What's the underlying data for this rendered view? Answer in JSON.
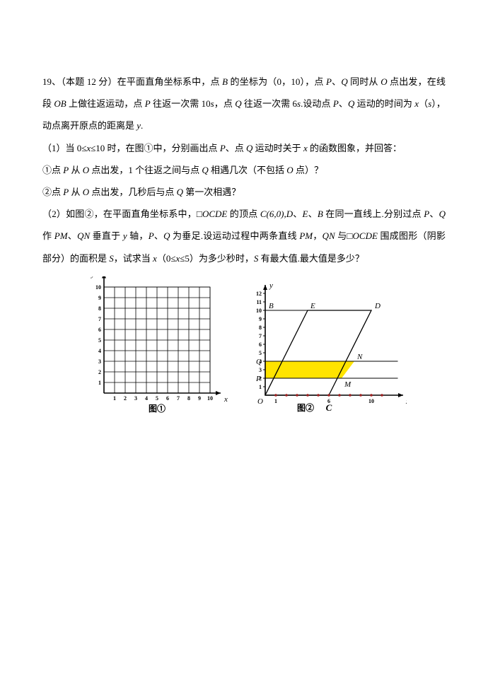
{
  "problem": {
    "number": "19、",
    "points": "（本题 12 分）",
    "line1a": "在平面直角坐标系中，点 ",
    "B": "B",
    "line1b": " 的坐标为（0，10），点 ",
    "P": "P",
    "Q": "Q",
    "line1c": "、",
    "line1d": " 同时从 ",
    "O": "O",
    "line1e": " 点出发，在线段 ",
    "OB": "OB",
    "line2a": " 上做往返运动，点 ",
    "line2b": " 往返一次需 10",
    "s": "s",
    "line2c": "，点 ",
    "line2d": " 往返一次需 6",
    "line2e": ".设动点 ",
    "line2f": " 运动的时间为 ",
    "x": "x",
    "paren_s": "（",
    "paren_s2": "）",
    "line3a": "，动点离开原点的距离是 ",
    "y": "y",
    "period": ".",
    "part1_open": "（1）当 0≤",
    "part1_a": "≤10 时，在图①中，分别画出点 ",
    "part1_b": "、点 ",
    "part1_c": " 运动时关于 ",
    "part1_d": " 的函数图象，并回答：",
    "sub1_a": "①点 ",
    "sub1_b": " 从 ",
    "sub1_c": " 点出发，1 个往返之间与点 ",
    "sub1_d": " 相遇几次（不包括 ",
    "sub1_e": " 点）？",
    "sub2_a": "②点 ",
    "sub2_b": " 从 ",
    "sub2_c": " 点出发，几秒后与点 ",
    "sub2_d": " 第一次相遇？",
    "part2_a": "（2）如图②，在平面直角坐标系中，□",
    "OCDE": "OCDE",
    "part2_b": " 的顶点 ",
    "C": "C",
    "Cc": "(6,0),",
    "D": "D",
    "E": "E",
    "part2_c": "、",
    "part2_d": " 在同一直线上.分别过点 ",
    "part3_a": "作 ",
    "PM": "PM",
    "part3_b": "、",
    "QN": "QN",
    "part3_c": " 垂直于 ",
    "yaxis": "y",
    "part3_d": " 轴，",
    "part3_e": " 为垂足.设运动过程中两条直线 ",
    "part3_f": "，",
    "part3_g": " 与□",
    "part3_h": " 围成图形（阴影部分）的面积是 ",
    "S": "S",
    "part4_a": "，试求当 ",
    "part4_b": "（0≤",
    "part4_c": "≤5）为多少秒时，",
    "part4_d": " 有最大值.最大值是多少？"
  },
  "figure1": {
    "label": "图①",
    "axis_x_label": "x",
    "axis_y_label": "y",
    "grid": {
      "min": 0,
      "max": 10,
      "step": 1
    },
    "xticks": [
      "1",
      "2",
      "3",
      "4",
      "5",
      "6",
      "7",
      "8",
      "9",
      "10"
    ],
    "yticks": [
      "1",
      "2",
      "3",
      "4",
      "5",
      "6",
      "7",
      "8",
      "9",
      "10"
    ],
    "colors": {
      "axis": "#000000",
      "grid": "#000000",
      "bg": "#ffffff",
      "tick_text": "#000000"
    },
    "tick_font_size": 8
  },
  "figure2": {
    "label": "图②",
    "axis_x_label": "x",
    "axis_y_label": "y",
    "points": {
      "O": {
        "x": 0,
        "y": 0,
        "label": "O"
      },
      "C": {
        "x": 6,
        "y": 0,
        "label": "C"
      },
      "B": {
        "x": 0,
        "y": 10,
        "label": "B"
      },
      "E": {
        "x": 4,
        "y": 10,
        "label": "E"
      },
      "D": {
        "x": 10,
        "y": 10,
        "label": "D"
      },
      "Q": {
        "x": 0,
        "y": 4,
        "label": "Q"
      },
      "P": {
        "x": 0,
        "y": 2,
        "label": "P"
      },
      "N": {
        "x": 8.4,
        "y": 4,
        "label": "N"
      },
      "M": {
        "x": 7.2,
        "y": 2,
        "label": "M"
      }
    },
    "shaded": {
      "color": "#ffe400",
      "poly": [
        [
          0,
          2
        ],
        [
          7.2,
          2
        ],
        [
          8.4,
          4
        ],
        [
          0,
          4
        ]
      ]
    },
    "parallelogram": [
      [
        0,
        0
      ],
      [
        6,
        0
      ],
      [
        10,
        10
      ],
      [
        4,
        10
      ]
    ],
    "ytick_labels": [
      "1",
      "2",
      "3",
      "4",
      "5",
      "6",
      "7",
      "8",
      "9",
      "10",
      "11",
      "12"
    ],
    "xtick_marks": [
      1,
      2,
      3,
      4,
      5,
      6,
      7,
      8,
      9,
      10,
      11
    ],
    "xtick_labels": {
      "1": "1",
      "6": "6",
      "10": "10"
    },
    "colors": {
      "axis": "#000000",
      "line": "#000000",
      "bg": "#ffffff",
      "tick_dot": "#9a1f1f"
    },
    "tick_font_size": 8
  }
}
